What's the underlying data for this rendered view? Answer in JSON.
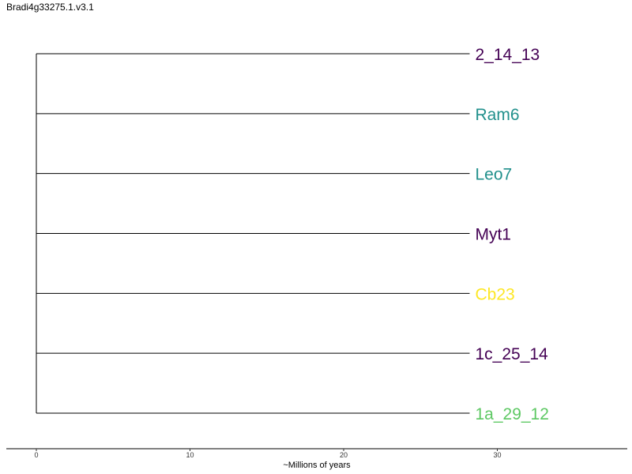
{
  "title": "Bradi4g33275.1.v3.1",
  "chart_data": {
    "type": "dendrogram",
    "title": "Bradi4g33275.1.v3.1",
    "xlabel": "~Millions of years",
    "xlim": [
      0,
      38
    ],
    "xticks": [
      0,
      10,
      20,
      30
    ],
    "tick_labels": [
      "0",
      "10",
      "20",
      "30"
    ],
    "root_x": 0,
    "tips": [
      {
        "label": "2_14_13",
        "x": 28.2,
        "color": "#440154"
      },
      {
        "label": "Ram6",
        "x": 28.2,
        "color": "#21908C"
      },
      {
        "label": "Leo7",
        "x": 28.2,
        "color": "#21908C"
      },
      {
        "label": "Myt1",
        "x": 28.2,
        "color": "#440154"
      },
      {
        "label": "Cb23",
        "x": 28.2,
        "color": "#FDE725"
      },
      {
        "label": "1c_25_14",
        "x": 28.2,
        "color": "#440154"
      },
      {
        "label": "1a_29_12",
        "x": 28.2,
        "color": "#5DC863"
      }
    ]
  }
}
